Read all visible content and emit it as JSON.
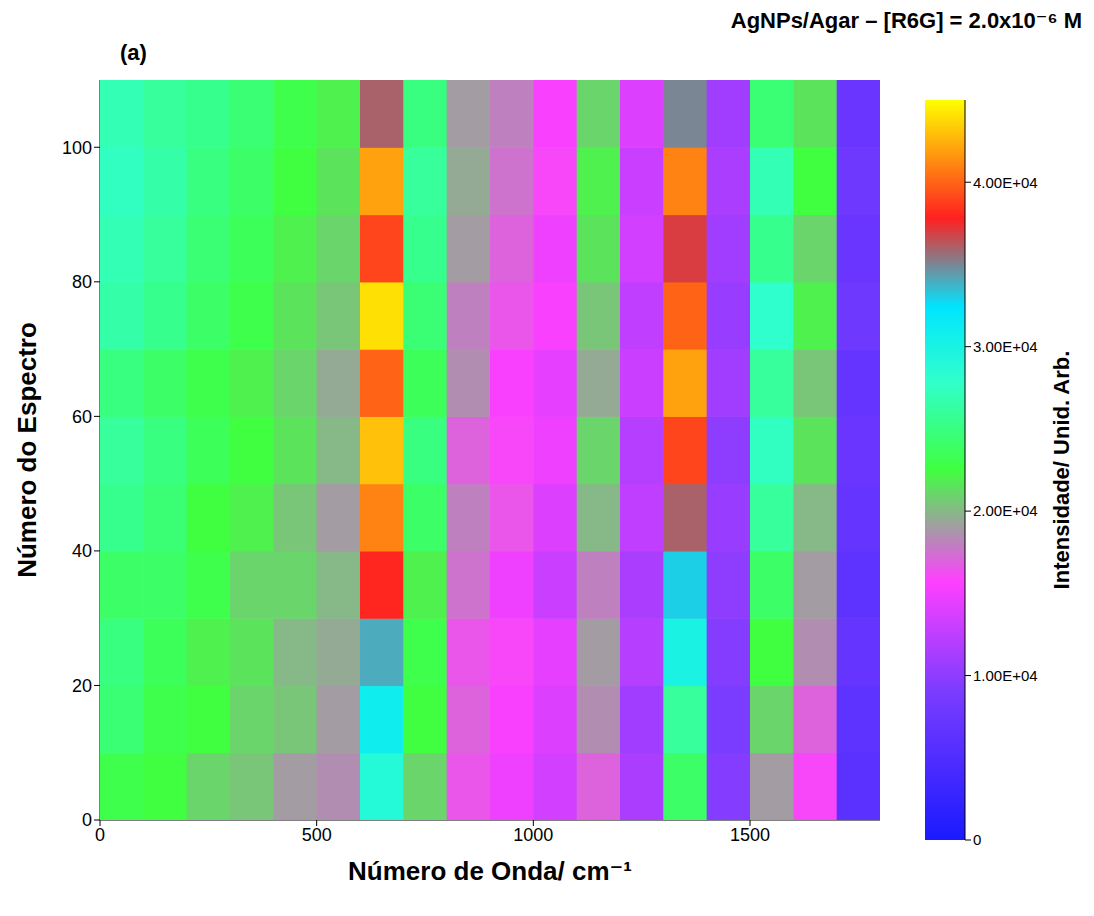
{
  "chart_data": {
    "type": "heatmap",
    "title": "AgNPs/Agar – [R6G] = 2.0x10⁻⁶ M",
    "panel_label": "(a)",
    "x_label": "Número de Onda/ cm⁻¹",
    "y_label": "Número do Espectro",
    "x": [
      50,
      150,
      250,
      350,
      450,
      550,
      650,
      750,
      850,
      950,
      1050,
      1150,
      1250,
      1350,
      1450,
      1550,
      1650,
      1750
    ],
    "y": [
      5,
      15,
      25,
      35,
      45,
      55,
      65,
      75,
      85,
      95,
      105
    ],
    "xlim": [
      0,
      1800
    ],
    "xticks": [
      0,
      500,
      1000,
      1500
    ],
    "ylim": [
      0,
      110
    ],
    "yticks": [
      0,
      20,
      40,
      60,
      80,
      100
    ],
    "intensity": [
      [
        23000,
        22500,
        21000,
        20500,
        19000,
        18500,
        29000,
        21000,
        16500,
        15000,
        13500,
        17000,
        11500,
        24000,
        9500,
        19000,
        16000,
        6000
      ],
      [
        24500,
        23000,
        22500,
        21000,
        20500,
        19000,
        31000,
        22500,
        17000,
        15500,
        14000,
        18500,
        11000,
        26000,
        9000,
        21000,
        17000,
        6500
      ],
      [
        25000,
        23500,
        22000,
        21500,
        20000,
        19500,
        34000,
        23000,
        16500,
        16000,
        14500,
        19000,
        12000,
        30000,
        9500,
        22500,
        18500,
        7000
      ],
      [
        24000,
        24000,
        23000,
        21000,
        21000,
        20000,
        38000,
        22000,
        17500,
        15000,
        13000,
        18000,
        11500,
        33000,
        10000,
        24000,
        19000,
        6500
      ],
      [
        25500,
        24500,
        22500,
        22000,
        20500,
        19000,
        41000,
        24000,
        18000,
        16500,
        14000,
        20000,
        12500,
        36000,
        10500,
        26000,
        20000,
        7000
      ],
      [
        26000,
        25000,
        23500,
        22500,
        21500,
        20000,
        43000,
        25000,
        17000,
        16000,
        15000,
        21000,
        12000,
        39000,
        10000,
        27500,
        21500,
        7500
      ],
      [
        25000,
        24000,
        23000,
        22000,
        21000,
        19500,
        40000,
        23500,
        18500,
        15500,
        14500,
        19500,
        13000,
        42000,
        11000,
        26000,
        20500,
        7000
      ],
      [
        26500,
        25500,
        24000,
        23000,
        21500,
        20500,
        44000,
        24500,
        18000,
        16500,
        15500,
        20500,
        12500,
        40000,
        10500,
        28000,
        22000,
        8000
      ],
      [
        27000,
        26000,
        24500,
        23500,
        22000,
        21000,
        39000,
        25500,
        19000,
        17000,
        15000,
        21500,
        13500,
        37000,
        11000,
        25500,
        21000,
        7500
      ],
      [
        27500,
        26500,
        25000,
        24000,
        22500,
        21500,
        42000,
        26000,
        19500,
        17500,
        16000,
        22000,
        13000,
        41000,
        11500,
        27000,
        22500,
        8000
      ],
      [
        27000,
        26000,
        25500,
        24500,
        23000,
        22000,
        36000,
        25000,
        19000,
        18000,
        15500,
        21000,
        14000,
        35000,
        11000,
        24500,
        21500,
        7500
      ]
    ],
    "colorbar_label": "Intensidade/ Unid. Arb.",
    "colorbar_range": [
      0,
      45000
    ],
    "colorbar_ticks": [
      0,
      {
        "value": 10000,
        "label": "1.00E+04"
      },
      {
        "value": 20000,
        "label": "2.00E+04"
      },
      {
        "value": 30000,
        "label": "3.00E+04"
      },
      {
        "value": 40000,
        "label": "4.00E+04"
      }
    ]
  }
}
